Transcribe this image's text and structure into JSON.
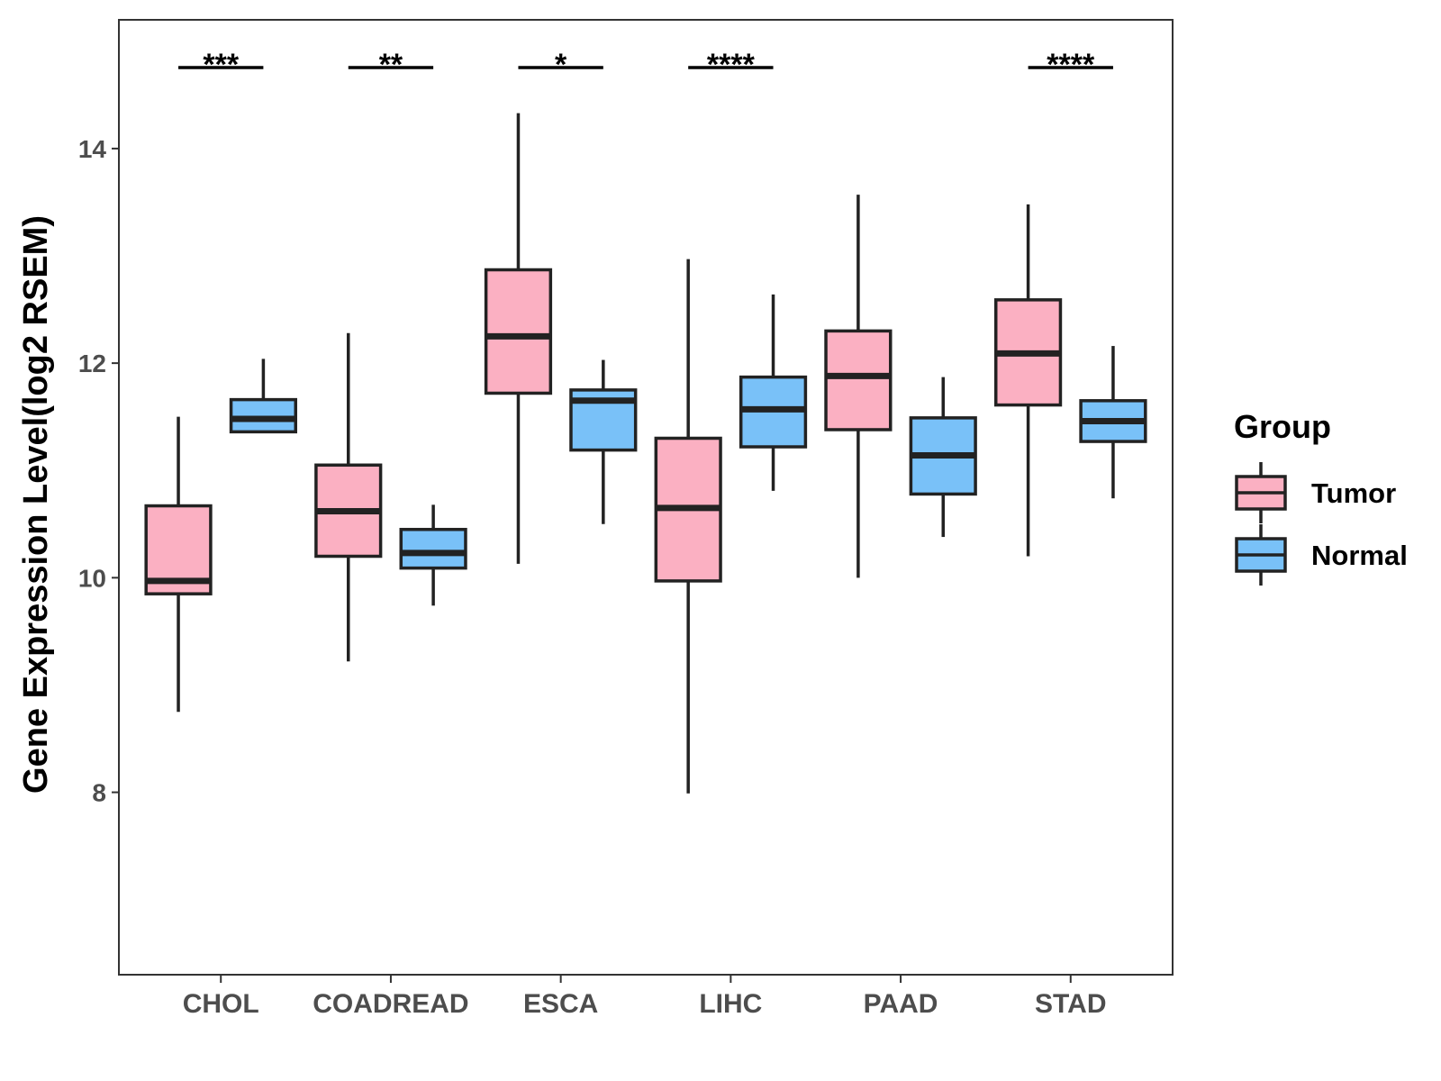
{
  "chart_data": {
    "type": "boxplot",
    "title": "",
    "xlabel": "",
    "ylabel": "Gene Expression Level(log2 RSEM)",
    "ylim": [
      6.3,
      15.2
    ],
    "yticks": [
      8,
      10,
      12,
      14
    ],
    "categories": [
      "CHOL",
      "COADREAD",
      "ESCA",
      "LIHC",
      "PAAD",
      "STAD"
    ],
    "legend": {
      "title": "Group",
      "position": "right"
    },
    "series": [
      {
        "name": "Tumor",
        "color": "#FBB0C2",
        "boxes": [
          {
            "min": 8.75,
            "q1": 9.85,
            "median": 9.97,
            "q3": 10.67,
            "max": 11.5
          },
          {
            "min": 9.22,
            "q1": 10.2,
            "median": 10.62,
            "q3": 11.05,
            "max": 12.28
          },
          {
            "min": 10.13,
            "q1": 11.72,
            "median": 12.25,
            "q3": 12.87,
            "max": 14.33
          },
          {
            "min": 7.99,
            "q1": 9.97,
            "median": 10.65,
            "q3": 11.3,
            "max": 12.97
          },
          {
            "min": 10.0,
            "q1": 11.38,
            "median": 11.88,
            "q3": 12.3,
            "max": 13.57
          },
          {
            "min": 10.2,
            "q1": 11.61,
            "median": 12.09,
            "q3": 12.59,
            "max": 13.48
          }
        ]
      },
      {
        "name": "Normal",
        "color": "#79C1F8",
        "boxes": [
          {
            "min": 11.36,
            "q1": 11.36,
            "median": 11.48,
            "q3": 11.66,
            "max": 12.04
          },
          {
            "min": 9.74,
            "q1": 10.09,
            "median": 10.23,
            "q3": 10.45,
            "max": 10.68
          },
          {
            "min": 10.5,
            "q1": 11.19,
            "median": 11.65,
            "q3": 11.75,
            "max": 12.03
          },
          {
            "min": 10.81,
            "q1": 11.22,
            "median": 11.57,
            "q3": 11.87,
            "max": 12.64
          },
          {
            "min": 10.38,
            "q1": 10.78,
            "median": 11.14,
            "q3": 11.49,
            "max": 11.87
          },
          {
            "min": 10.74,
            "q1": 11.27,
            "median": 11.46,
            "q3": 11.65,
            "max": 12.16
          }
        ]
      }
    ],
    "significance": [
      {
        "category": "CHOL",
        "label": "***"
      },
      {
        "category": "COADREAD",
        "label": "**"
      },
      {
        "category": "ESCA",
        "label": "*"
      },
      {
        "category": "LIHC",
        "label": "****"
      },
      {
        "category": "STAD",
        "label": "****"
      }
    ]
  }
}
